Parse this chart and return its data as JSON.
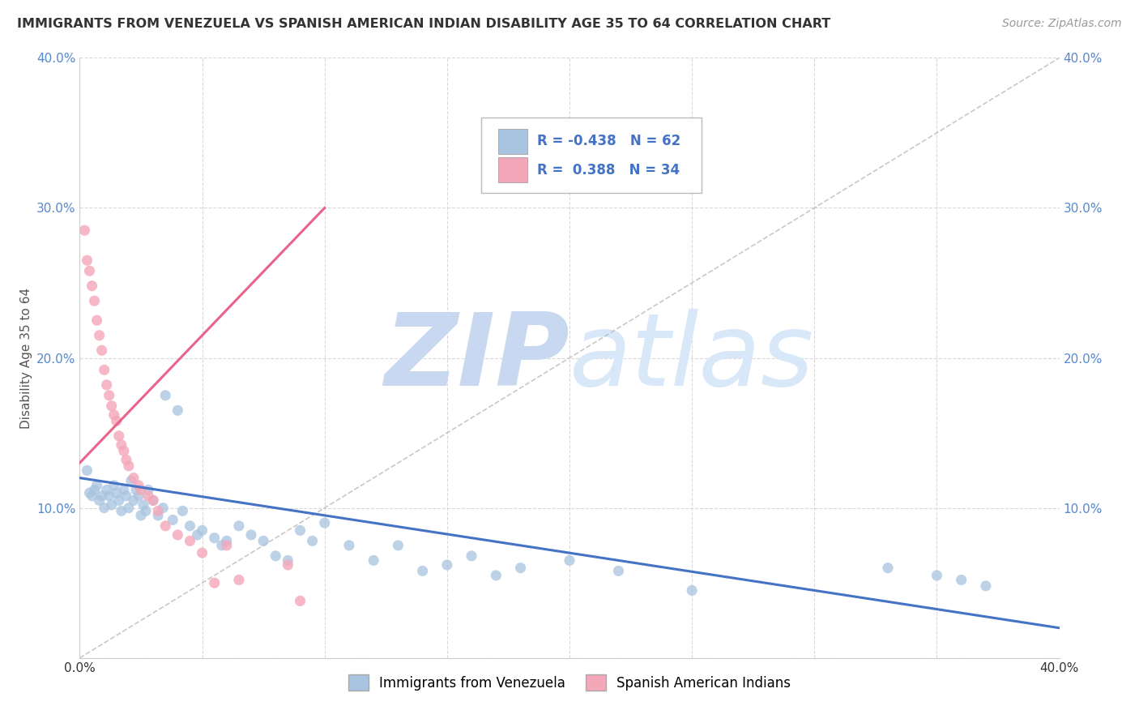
{
  "title": "IMMIGRANTS FROM VENEZUELA VS SPANISH AMERICAN INDIAN DISABILITY AGE 35 TO 64 CORRELATION CHART",
  "source": "Source: ZipAtlas.com",
  "ylabel": "Disability Age 35 to 64",
  "xlim": [
    0.0,
    0.4
  ],
  "ylim": [
    0.0,
    0.4
  ],
  "blue_color": "#a8c4e0",
  "blue_line_color": "#4472c4",
  "pink_color": "#f4a7b9",
  "pink_line_color": "#e8648a",
  "R_blue": -0.438,
  "N_blue": 62,
  "R_pink": 0.388,
  "N_pink": 34,
  "watermark_zip": "ZIP",
  "watermark_atlas": "atlas",
  "watermark_color_zip": "#c8d8f0",
  "watermark_color_atlas": "#c8d8f0",
  "blue_scatter_x": [
    0.003,
    0.004,
    0.005,
    0.006,
    0.007,
    0.008,
    0.009,
    0.01,
    0.011,
    0.012,
    0.013,
    0.014,
    0.015,
    0.016,
    0.017,
    0.018,
    0.019,
    0.02,
    0.021,
    0.022,
    0.023,
    0.024,
    0.025,
    0.026,
    0.027,
    0.028,
    0.03,
    0.032,
    0.034,
    0.035,
    0.038,
    0.04,
    0.042,
    0.045,
    0.048,
    0.05,
    0.055,
    0.058,
    0.06,
    0.065,
    0.07,
    0.075,
    0.08,
    0.085,
    0.09,
    0.095,
    0.1,
    0.11,
    0.12,
    0.13,
    0.14,
    0.15,
    0.16,
    0.17,
    0.18,
    0.2,
    0.22,
    0.25,
    0.33,
    0.35,
    0.36,
    0.37
  ],
  "blue_scatter_y": [
    0.125,
    0.11,
    0.108,
    0.112,
    0.115,
    0.105,
    0.108,
    0.1,
    0.112,
    0.108,
    0.102,
    0.115,
    0.11,
    0.105,
    0.098,
    0.112,
    0.108,
    0.1,
    0.118,
    0.105,
    0.112,
    0.108,
    0.095,
    0.102,
    0.098,
    0.112,
    0.105,
    0.095,
    0.1,
    0.175,
    0.092,
    0.165,
    0.098,
    0.088,
    0.082,
    0.085,
    0.08,
    0.075,
    0.078,
    0.088,
    0.082,
    0.078,
    0.068,
    0.065,
    0.085,
    0.078,
    0.09,
    0.075,
    0.065,
    0.075,
    0.058,
    0.062,
    0.068,
    0.055,
    0.06,
    0.065,
    0.058,
    0.045,
    0.06,
    0.055,
    0.052,
    0.048
  ],
  "pink_scatter_x": [
    0.002,
    0.003,
    0.004,
    0.005,
    0.006,
    0.007,
    0.008,
    0.009,
    0.01,
    0.011,
    0.012,
    0.013,
    0.014,
    0.015,
    0.016,
    0.017,
    0.018,
    0.019,
    0.02,
    0.022,
    0.024,
    0.025,
    0.028,
    0.03,
    0.032,
    0.035,
    0.04,
    0.045,
    0.05,
    0.055,
    0.06,
    0.065,
    0.085,
    0.09
  ],
  "pink_scatter_y": [
    0.285,
    0.265,
    0.258,
    0.248,
    0.238,
    0.225,
    0.215,
    0.205,
    0.192,
    0.182,
    0.175,
    0.168,
    0.162,
    0.158,
    0.148,
    0.142,
    0.138,
    0.132,
    0.128,
    0.12,
    0.115,
    0.112,
    0.108,
    0.105,
    0.098,
    0.088,
    0.082,
    0.078,
    0.07,
    0.05,
    0.075,
    0.052,
    0.062,
    0.038
  ],
  "pink_line_x0": 0.0,
  "pink_line_y0": 0.13,
  "pink_line_x1": 0.1,
  "pink_line_y1": 0.3,
  "blue_line_x0": 0.0,
  "blue_line_y0": 0.12,
  "blue_line_x1": 0.4,
  "blue_line_y1": 0.02
}
